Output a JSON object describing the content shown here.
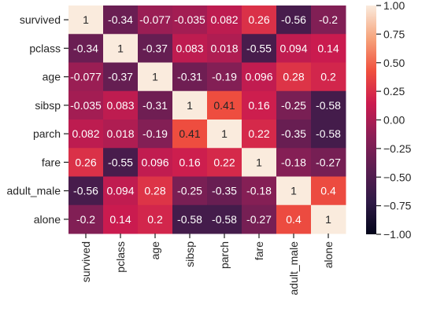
{
  "chart_data": {
    "type": "heatmap",
    "title": "",
    "xlabel": "",
    "ylabel": "",
    "row_labels": [
      "survived",
      "pclass",
      "age",
      "sibsp",
      "parch",
      "fare",
      "adult_male",
      "alone"
    ],
    "col_labels": [
      "survived",
      "pclass",
      "age",
      "sibsp",
      "parch",
      "fare",
      "adult_male",
      "alone"
    ],
    "values": [
      [
        1,
        -0.34,
        -0.077,
        -0.035,
        0.082,
        0.26,
        -0.56,
        -0.2
      ],
      [
        -0.34,
        1,
        -0.37,
        0.083,
        0.018,
        -0.55,
        0.094,
        0.14
      ],
      [
        -0.077,
        -0.37,
        1,
        -0.31,
        -0.19,
        0.096,
        0.28,
        0.2
      ],
      [
        -0.035,
        0.083,
        -0.31,
        1,
        0.41,
        0.16,
        -0.25,
        -0.58
      ],
      [
        0.082,
        0.018,
        -0.19,
        0.41,
        1,
        0.22,
        -0.35,
        -0.58
      ],
      [
        0.26,
        -0.55,
        0.096,
        0.16,
        0.22,
        1,
        -0.18,
        -0.27
      ],
      [
        -0.56,
        0.094,
        0.28,
        -0.25,
        -0.35,
        -0.18,
        1,
        0.4
      ],
      [
        -0.2,
        0.14,
        0.2,
        -0.58,
        -0.58,
        -0.27,
        0.4,
        1
      ]
    ],
    "cell_labels": [
      [
        "1",
        "-0.34",
        "-0.077",
        "-0.035",
        "0.082",
        "0.26",
        "-0.56",
        "-0.2"
      ],
      [
        "-0.34",
        "1",
        "-0.37",
        "0.083",
        "0.018",
        "-0.55",
        "0.094",
        "0.14"
      ],
      [
        "-0.077",
        "-0.37",
        "1",
        "-0.31",
        "-0.19",
        "0.096",
        "0.28",
        "0.2"
      ],
      [
        "-0.035",
        "0.083",
        "-0.31",
        "1",
        "0.41",
        "0.16",
        "-0.25",
        "-0.58"
      ],
      [
        "0.082",
        "0.018",
        "-0.19",
        "0.41",
        "1",
        "0.22",
        "-0.35",
        "-0.58"
      ],
      [
        "0.26",
        "-0.55",
        "0.096",
        "0.16",
        "0.22",
        "1",
        "-0.18",
        "-0.27"
      ],
      [
        "-0.56",
        "0.094",
        "0.28",
        "-0.25",
        "-0.35",
        "-0.18",
        "1",
        "0.4"
      ],
      [
        "-0.2",
        "0.14",
        "0.2",
        "-0.58",
        "-0.58",
        "-0.27",
        "0.4",
        "1"
      ]
    ],
    "colorbar": {
      "min": -1,
      "max": 1,
      "ticks": [
        -1,
        -0.75,
        -0.5,
        -0.25,
        0,
        0.25,
        0.5,
        0.75,
        1
      ],
      "tick_labels": [
        "−1.00",
        "−0.75",
        "−0.50",
        "−0.25",
        "0.00",
        "0.25",
        "0.50",
        "0.75",
        "1.00"
      ],
      "colormap": "rocket",
      "stops": [
        "#03051a",
        "#2f1a46",
        "#5b1e51",
        "#8b1f56",
        "#cb1b4f",
        "#f0503e",
        "#f6a47c",
        "#faebdd"
      ]
    },
    "text_color_light": "#ffffff",
    "text_color_dark": "#262626"
  }
}
